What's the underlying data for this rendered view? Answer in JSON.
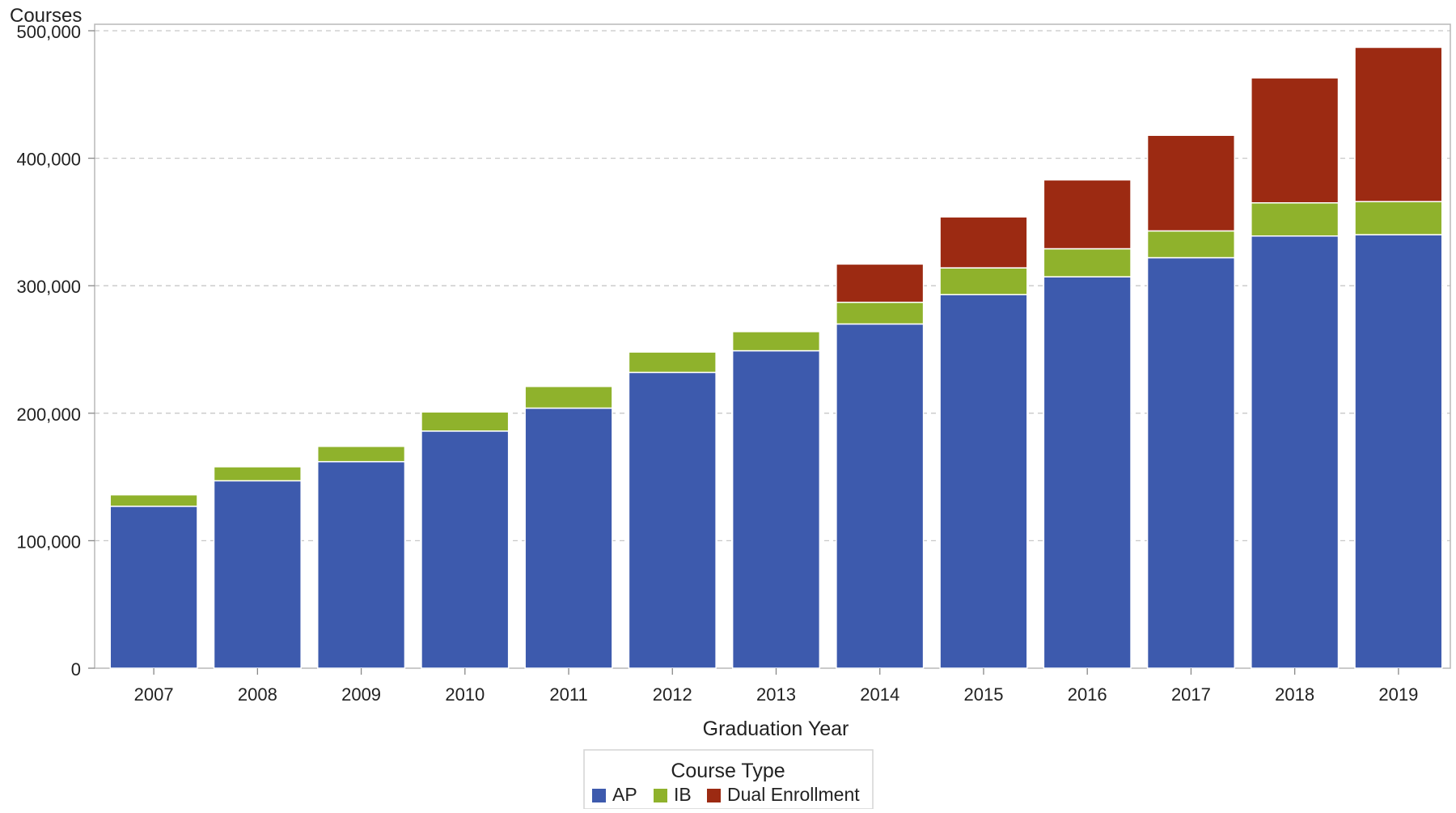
{
  "chart_data": {
    "type": "bar",
    "stacked": true,
    "categories": [
      "2007",
      "2008",
      "2009",
      "2010",
      "2011",
      "2012",
      "2013",
      "2014",
      "2015",
      "2016",
      "2017",
      "2018",
      "2019"
    ],
    "series": [
      {
        "name": "AP",
        "color": "#3d5aad",
        "values": [
          127000,
          147000,
          162000,
          186000,
          204000,
          232000,
          249000,
          270000,
          293000,
          307000,
          322000,
          339000,
          340000
        ]
      },
      {
        "name": "IB",
        "color": "#8fb22c",
        "values": [
          9000,
          11000,
          12000,
          15000,
          17000,
          16000,
          15000,
          17000,
          21000,
          22000,
          21000,
          26000,
          26000
        ]
      },
      {
        "name": "Dual Enrollment",
        "color": "#9c2a12",
        "values": [
          0,
          0,
          0,
          0,
          0,
          0,
          0,
          30000,
          40000,
          54000,
          75000,
          98000,
          121000
        ]
      }
    ],
    "ylabel": "Courses",
    "xlabel": "Graduation Year",
    "ylim": [
      0,
      500000
    ],
    "yticks": [
      0,
      100000,
      200000,
      300000,
      400000,
      500000
    ],
    "ytick_labels": [
      "0",
      "100,000",
      "200,000",
      "300,000",
      "400,000",
      "500,000"
    ],
    "legend": {
      "title": "Course Type",
      "placement": "bottom-center"
    },
    "grid": true
  }
}
